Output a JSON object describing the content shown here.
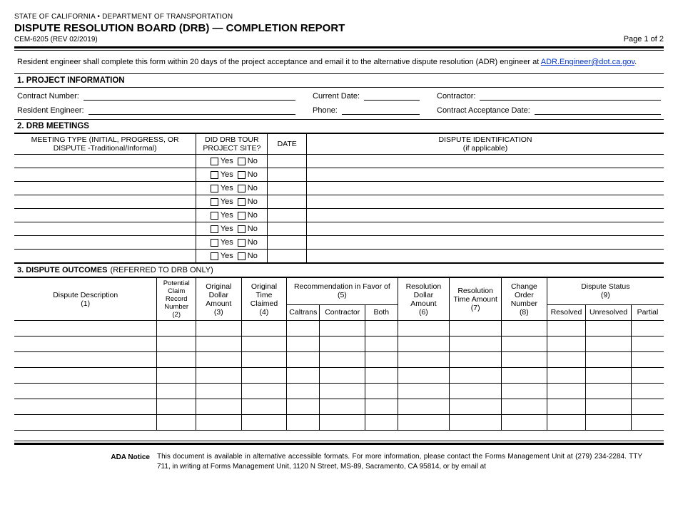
{
  "header": {
    "agency": "STATE OF CALIFORNIA • DEPARTMENT OF TRANSPORTATION",
    "title": "DISPUTE RESOLUTION BOARD (DRB) — COMPLETION REPORT",
    "form_no": "CEM-6205 (REV 02/2019)",
    "page": "Page 1 of 2"
  },
  "intro": {
    "text_before": "Resident engineer shall complete this form within 20 days of the project acceptance and email it to the alternative dispute resolution (ADR) engineer at ",
    "link_text": "ADR.Engineer@dot.ca.gov",
    "text_after": "."
  },
  "section1": {
    "heading": "1. PROJECT INFORMATION",
    "fields": {
      "contract_number": "Contract Number:",
      "current_date": "Current Date:",
      "contractor": "Contractor:",
      "resident_engineer": "Resident Engineer:",
      "phone": "Phone:",
      "acceptance_date": "Contract Acceptance Date:"
    }
  },
  "section2": {
    "heading": "2. DRB MEETINGS",
    "columns": {
      "meeting_type": "MEETING TYPE (INITIAL, PROGRESS, OR DISPUTE -Traditional/Informal)",
      "tour": "DID DRB TOUR PROJECT SITE?",
      "date": "DATE",
      "dispute_id": "DISPUTE IDENTIFICATION\n(if applicable)"
    },
    "yes": "Yes",
    "no": "No",
    "row_count": 8
  },
  "section3": {
    "heading_bold": "3. DISPUTE OUTCOMES",
    "heading_plain": " (REFERRED TO DRB ONLY)",
    "columns": {
      "desc": "Dispute Description\n(1)",
      "claim_no": "Potential Claim Record Number\n(2)",
      "orig_dollar": "Original Dollar Amount\n(3)",
      "orig_time": "Original Time Claimed\n(4)",
      "rec_favor": "Recommendation in Favor of\n(5)",
      "rec_caltrans": "Caltrans",
      "rec_contractor": "Contractor",
      "rec_both": "Both",
      "res_dollar": "Resolution Dollar Amount\n(6)",
      "res_time": "Resolution Time Amount\n(7)",
      "cco": "Change Order Number\n(8)",
      "status": "Dispute Status\n(9)",
      "status_resolved": "Resolved",
      "status_unresolved": "Unresolved",
      "status_partial": "Partial"
    },
    "row_count": 7
  },
  "ada": {
    "label": "ADA Notice",
    "text": "This document is available in alternative accessible formats. For more information, please contact the Forms Management Unit at (279) 234-2284. TTY 711, in writing at Forms Management Unit, 1120 N Street, MS-89, Sacramento, CA 95814, or by email at"
  },
  "layout": {
    "tbl2_widths": {
      "meeting_type": "28%",
      "tour": "11%",
      "date": "6%",
      "dispute_id": "55%"
    },
    "tbl3_widths": {
      "desc": "22%",
      "claim_no": "6%",
      "orig_dollar": "7%",
      "orig_time": "7%",
      "rec_caltrans": "5%",
      "rec_contractor": "7%",
      "rec_both": "5%",
      "res_dollar": "8%",
      "res_time": "8%",
      "cco": "7%",
      "status_resolved": "6%",
      "status_unresolved": "7%",
      "status_partial": "5%"
    }
  }
}
